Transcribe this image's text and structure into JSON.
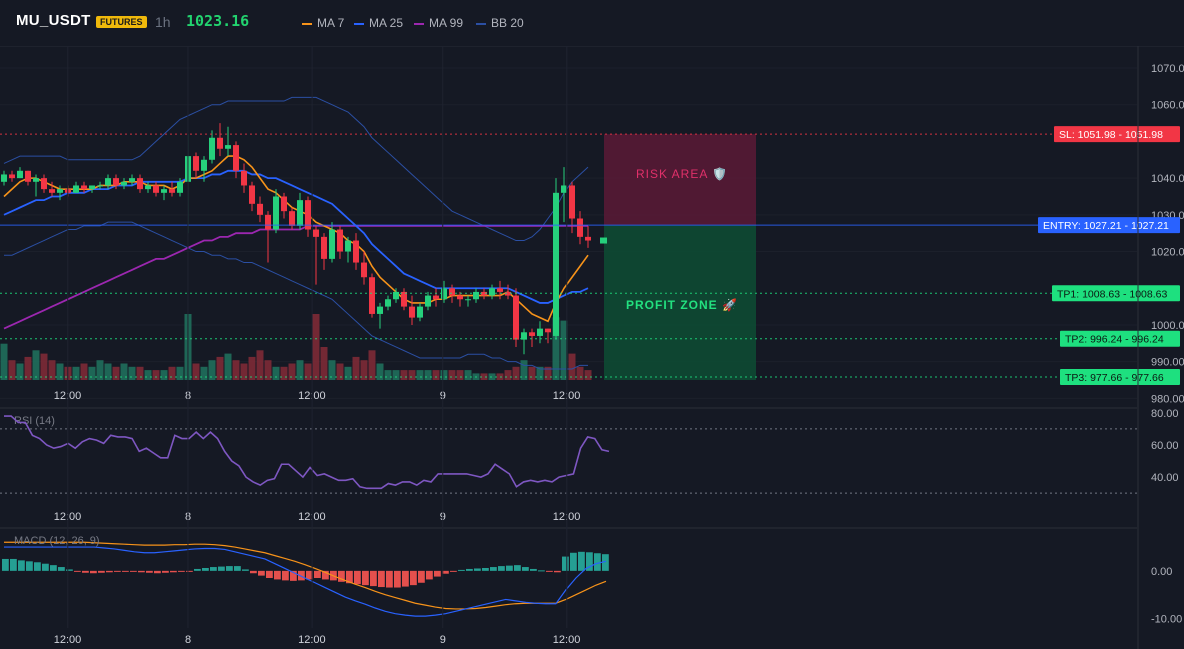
{
  "header": {
    "symbol": "MU_USDT",
    "badge": "FUTURES",
    "timeframe": "1h",
    "price": "1023.16",
    "legend": [
      {
        "label": "MA 7",
        "color": "#f7931a"
      },
      {
        "label": "MA 25",
        "color": "#2962ff"
      },
      {
        "label": "MA 99",
        "color": "#9c27b0"
      },
      {
        "label": "BB 20",
        "color": "#2b4fa3"
      }
    ]
  },
  "chart_data": [
    {
      "type": "candlestick",
      "ylim": [
        985,
        1076
      ],
      "yticks": [
        "1070.00",
        "1060.00",
        "1040.00",
        "1030.00",
        "1020.00",
        "1000.00",
        "990.00",
        "980.00"
      ],
      "xticks": [
        {
          "i": 5,
          "label": "12:00"
        },
        {
          "i": 23,
          "label": "8"
        },
        {
          "i": 38,
          "label": "12:00"
        },
        {
          "i": 53,
          "label": "9"
        },
        {
          "i": 68,
          "label": "12:00"
        }
      ],
      "colors": {
        "up": "#26d07c",
        "down": "#f23645"
      },
      "candles": [
        [
          1039,
          1042,
          1038,
          1041
        ],
        [
          1041,
          1042,
          1039,
          1040
        ],
        [
          1040,
          1043,
          1040,
          1042
        ],
        [
          1042,
          1042,
          1038,
          1039
        ],
        [
          1039,
          1041,
          1035,
          1040
        ],
        [
          1040,
          1041,
          1036,
          1037
        ],
        [
          1037,
          1039,
          1035,
          1036
        ],
        [
          1036,
          1038,
          1034,
          1037
        ],
        [
          1037,
          1038,
          1035,
          1036
        ],
        [
          1036,
          1039,
          1036,
          1038
        ],
        [
          1038,
          1039,
          1036,
          1037
        ],
        [
          1037,
          1038,
          1036,
          1038
        ],
        [
          1038,
          1039,
          1037,
          1038
        ],
        [
          1038,
          1041,
          1037,
          1040
        ],
        [
          1040,
          1041,
          1037,
          1038
        ],
        [
          1038,
          1040,
          1037,
          1039
        ],
        [
          1039,
          1041,
          1038,
          1040
        ],
        [
          1040,
          1041,
          1036,
          1037
        ],
        [
          1037,
          1039,
          1036,
          1038
        ],
        [
          1038,
          1039,
          1035,
          1036
        ],
        [
          1036,
          1038,
          1034,
          1037
        ],
        [
          1037,
          1039,
          1035,
          1036
        ],
        [
          1036,
          1040,
          1035,
          1039
        ],
        [
          1039,
          1052,
          1025,
          1046
        ],
        [
          1046,
          1047,
          1040,
          1042
        ],
        [
          1042,
          1046,
          1039,
          1045
        ],
        [
          1045,
          1053,
          1044,
          1051
        ],
        [
          1051,
          1055,
          1046,
          1048
        ],
        [
          1048,
          1054,
          1046,
          1049
        ],
        [
          1049,
          1050,
          1040,
          1042
        ],
        [
          1042,
          1044,
          1036,
          1038
        ],
        [
          1038,
          1039,
          1031,
          1033
        ],
        [
          1033,
          1035,
          1028,
          1030
        ],
        [
          1030,
          1031,
          1017,
          1026
        ],
        [
          1026,
          1037,
          1025,
          1035
        ],
        [
          1035,
          1036,
          1029,
          1031
        ],
        [
          1031,
          1032,
          1026,
          1027
        ],
        [
          1027,
          1036,
          1026,
          1034
        ],
        [
          1034,
          1035,
          1024,
          1026
        ],
        [
          1026,
          1027,
          1011,
          1024
        ],
        [
          1024,
          1025,
          1015,
          1018
        ],
        [
          1018,
          1028,
          1017,
          1026
        ],
        [
          1026,
          1027,
          1018,
          1020
        ],
        [
          1020,
          1024,
          1017,
          1023
        ],
        [
          1023,
          1025,
          1015,
          1017
        ],
        [
          1017,
          1020,
          1011,
          1013
        ],
        [
          1013,
          1014,
          1002,
          1003
        ],
        [
          1003,
          1006,
          999,
          1005
        ],
        [
          1005,
          1008,
          1004,
          1007
        ],
        [
          1007,
          1010,
          1006,
          1009
        ],
        [
          1009,
          1010,
          1004,
          1005
        ],
        [
          1005,
          1008,
          1000,
          1002
        ],
        [
          1002,
          1006,
          1001,
          1005
        ],
        [
          1005,
          1009,
          1004,
          1008
        ],
        [
          1008,
          1010,
          1005,
          1007
        ],
        [
          1007,
          1012,
          1006,
          1010
        ],
        [
          1010,
          1011,
          1006,
          1008
        ],
        [
          1008,
          1009,
          1005,
          1007
        ],
        [
          1007,
          1008,
          1005,
          1007
        ],
        [
          1007,
          1010,
          1006,
          1009
        ],
        [
          1009,
          1010,
          1007,
          1008
        ],
        [
          1008,
          1011,
          1007,
          1010
        ],
        [
          1010,
          1012,
          1007,
          1009
        ],
        [
          1009,
          1011,
          1007,
          1008
        ],
        [
          1008,
          1010,
          994,
          996
        ],
        [
          996,
          999,
          992,
          998
        ],
        [
          998,
          999,
          994,
          997
        ],
        [
          997,
          1001,
          995,
          999
        ],
        [
          999,
          999,
          995,
          998
        ],
        [
          997,
          1040,
          996,
          1036
        ],
        [
          1036,
          1043,
          1028,
          1038
        ],
        [
          1038,
          1039,
          1025,
          1029
        ],
        [
          1029,
          1031,
          1022,
          1024
        ],
        [
          1024,
          1027,
          1021,
          1023
        ]
      ],
      "ma7": [
        1035,
        1037,
        1039,
        1040,
        1040,
        1039,
        1038,
        1037,
        1037,
        1037,
        1037,
        1037,
        1038,
        1038,
        1038,
        1039,
        1039,
        1039,
        1038,
        1038,
        1038,
        1037,
        1038,
        1040,
        1040,
        1041,
        1042,
        1044,
        1046,
        1046,
        1045,
        1043,
        1040,
        1037,
        1036,
        1034,
        1032,
        1031,
        1030,
        1028,
        1027,
        1026,
        1025,
        1023,
        1022,
        1020,
        1016,
        1013,
        1011,
        1009,
        1007,
        1006,
        1006,
        1006,
        1007,
        1007,
        1008,
        1008,
        1008,
        1008,
        1008,
        1008,
        1008,
        1009,
        1007,
        1005,
        1003,
        1002,
        1001,
        1006,
        1010,
        1013,
        1016,
        1019
      ],
      "ma25": [
        1030,
        1031,
        1032,
        1033,
        1034,
        1034,
        1035,
        1035,
        1036,
        1036,
        1036,
        1037,
        1037,
        1037,
        1038,
        1038,
        1038,
        1039,
        1039,
        1039,
        1039,
        1039,
        1039,
        1040,
        1040,
        1040,
        1041,
        1041,
        1042,
        1042,
        1042,
        1041,
        1041,
        1040,
        1040,
        1039,
        1038,
        1037,
        1036,
        1035,
        1034,
        1033,
        1031,
        1029,
        1027,
        1025,
        1022,
        1020,
        1018,
        1016,
        1014,
        1013,
        1012,
        1011,
        1010,
        1010,
        1010,
        1010,
        1010,
        1010,
        1010,
        1010,
        1010,
        1010,
        1009,
        1008,
        1007,
        1006,
        1006,
        1007,
        1008,
        1009,
        1009,
        1010
      ],
      "ma99": [
        999,
        1000,
        1001,
        1002,
        1003,
        1004,
        1005,
        1006,
        1007,
        1008,
        1009,
        1010,
        1011,
        1012,
        1013,
        1014,
        1015,
        1016,
        1017,
        1018,
        1018,
        1019,
        1020,
        1021,
        1022,
        1023,
        1023,
        1024,
        1024,
        1025,
        1025,
        1025,
        1026,
        1026,
        1026,
        1026,
        1026,
        1026,
        1027,
        1027,
        1027,
        1027,
        1027,
        1027,
        1027,
        1027,
        1027,
        1027,
        1027,
        1027,
        1027,
        1027,
        1027,
        1027,
        1027,
        1027,
        1027,
        1027,
        1027,
        1027,
        1027,
        1027,
        1027,
        1027,
        1027,
        1027,
        1027,
        1027,
        1027,
        1027,
        1027,
        1027,
        1027,
        1027
      ],
      "bb_upper": [
        1044,
        1045,
        1046,
        1046,
        1046,
        1046,
        1046,
        1046,
        1045,
        1045,
        1045,
        1045,
        1045,
        1045,
        1045,
        1045,
        1045,
        1046,
        1048,
        1050,
        1052,
        1054,
        1056,
        1057,
        1058,
        1059,
        1060,
        1060,
        1061,
        1061,
        1061,
        1061,
        1061,
        1061,
        1061,
        1061,
        1062,
        1062,
        1062,
        1062,
        1061,
        1060,
        1059,
        1058,
        1056,
        1054,
        1051,
        1049,
        1047,
        1045,
        1043,
        1041,
        1039,
        1037,
        1035,
        1033,
        1031,
        1030,
        1029,
        1028,
        1027,
        1026,
        1025,
        1024,
        1023,
        1023,
        1024,
        1026,
        1029,
        1032,
        1036,
        1039,
        1041,
        1043
      ],
      "bb_lower": [
        1019,
        1019,
        1020,
        1021,
        1022,
        1023,
        1024,
        1025,
        1026,
        1026,
        1027,
        1027,
        1027,
        1028,
        1028,
        1028,
        1028,
        1027,
        1026,
        1025,
        1024,
        1023,
        1022,
        1021,
        1020,
        1020,
        1019,
        1019,
        1018,
        1018,
        1017,
        1017,
        1016,
        1015,
        1014,
        1013,
        1012,
        1011,
        1010,
        1009,
        1008,
        1007,
        1005,
        1003,
        1001,
        999,
        997,
        996,
        995,
        994,
        993,
        992,
        991,
        991,
        991,
        991,
        991,
        991,
        992,
        992,
        992,
        991,
        991,
        990,
        990,
        989,
        989,
        988,
        988,
        988,
        988,
        988,
        989,
        989
      ],
      "volume": [
        0.55,
        0.3,
        0.25,
        0.35,
        0.45,
        0.4,
        0.3,
        0.25,
        0.2,
        0.2,
        0.25,
        0.2,
        0.3,
        0.25,
        0.2,
        0.25,
        0.2,
        0.2,
        0.15,
        0.15,
        0.15,
        0.2,
        0.2,
        1.0,
        0.25,
        0.2,
        0.3,
        0.35,
        0.4,
        0.3,
        0.25,
        0.35,
        0.45,
        0.3,
        0.2,
        0.2,
        0.25,
        0.3,
        0.25,
        1.0,
        0.5,
        0.3,
        0.25,
        0.2,
        0.35,
        0.3,
        0.45,
        0.25,
        0.15,
        0.15,
        0.15,
        0.15,
        0.15,
        0.15,
        0.15,
        0.15,
        0.15,
        0.15,
        0.15,
        0.1,
        0.1,
        0.1,
        0.1,
        0.15,
        0.2,
        0.3,
        0.2,
        0.2,
        0.2,
        0.95,
        0.9,
        0.4,
        0.2,
        0.15
      ],
      "levels": [
        {
          "name": "sl",
          "label": "SL: 1051.98 - 1051.98",
          "value": 1051.98,
          "color": "#f23645"
        },
        {
          "name": "entry",
          "label": "ENTRY: 1027.21 - 1027.21",
          "value": 1027.21,
          "color": "#2962ff"
        },
        {
          "name": "tp1",
          "label": "TP1: 1008.63 - 1008.63",
          "value": 1008.63,
          "color": "#1ee07f"
        },
        {
          "name": "tp2",
          "label": "TP2: 996.24 - 996.24",
          "value": 996.24,
          "color": "#1ee07f"
        },
        {
          "name": "tp3",
          "label": "TP3: 977.66 - 977.66",
          "value": 977.66,
          "color": "#1ee07f"
        }
      ],
      "zones": {
        "risk_label": "RISK AREA 🛡️",
        "profit_label": "PROFIT ZONE 🚀"
      }
    },
    {
      "type": "line",
      "title": "RSI (14)",
      "ylim": [
        27,
        83
      ],
      "yticks": [
        "80.00",
        "60.00",
        "40.00"
      ],
      "bands": [
        70,
        30
      ],
      "color": "#7e57c2",
      "values": [
        78,
        78,
        74,
        74,
        66,
        64,
        60,
        58,
        59,
        61,
        58,
        62,
        64,
        63,
        61,
        66,
        65,
        65,
        64,
        56,
        58,
        55,
        52,
        52,
        66,
        64,
        64,
        68,
        64,
        68,
        64,
        56,
        50,
        47,
        40,
        37,
        35,
        38,
        39,
        48,
        48,
        44,
        40,
        46,
        41,
        42,
        40,
        38,
        38,
        39,
        34,
        33,
        33,
        33,
        36,
        35,
        37,
        37,
        35,
        38,
        37,
        42,
        42,
        42,
        42,
        42,
        41,
        40,
        42,
        48,
        45,
        42,
        34,
        37,
        38,
        37,
        38,
        37,
        40,
        41,
        42,
        58,
        65,
        64,
        57,
        56
      ]
    },
    {
      "type": "bar",
      "title": "MACD (12, 26, 9)",
      "ylim": [
        -12,
        9
      ],
      "yticks": [
        "0.00",
        "-10.00"
      ],
      "up_color": "#26a69a",
      "down_color": "#ef5350",
      "histogram": [
        2.5,
        2.5,
        2.2,
        2.0,
        1.8,
        1.5,
        1.2,
        0.8,
        0.3,
        -0.2,
        -0.4,
        -0.5,
        -0.4,
        -0.3,
        -0.2,
        -0.2,
        -0.2,
        -0.3,
        -0.4,
        -0.5,
        -0.4,
        -0.3,
        -0.2,
        -0.1,
        0.4,
        0.6,
        0.8,
        0.9,
        1.0,
        1.0,
        0.3,
        -0.5,
        -1.0,
        -1.5,
        -1.8,
        -2.0,
        -2.1,
        -2.0,
        -1.8,
        -1.5,
        -1.8,
        -2.0,
        -2.3,
        -2.6,
        -2.8,
        -3.0,
        -3.2,
        -3.4,
        -3.5,
        -3.5,
        -3.3,
        -3.0,
        -2.5,
        -1.8,
        -1.2,
        -0.6,
        -0.2,
        0.2,
        0.4,
        0.5,
        0.6,
        0.8,
        1.0,
        1.1,
        1.2,
        0.8,
        0.4,
        0.1,
        -0.1,
        -0.3,
        3.0,
        3.8,
        4.0,
        3.9,
        3.7,
        3.5
      ],
      "macd": [
        5,
        5,
        5,
        5,
        5,
        5,
        5,
        5,
        5,
        5,
        4.8,
        4.6,
        4.3,
        4.0,
        3.8,
        3.8,
        4.0,
        4.2,
        4.4,
        4.6,
        4.7,
        4.7,
        4.5,
        4.0,
        3.5,
        3.0,
        2.5,
        1.5,
        0.5,
        -0.5,
        -1.5,
        -2.5,
        -3.5,
        -4.5,
        -5.5,
        -6.3,
        -7.0,
        -7.8,
        -8.5,
        -9.0,
        -9.3,
        -9.5,
        -9.5,
        -9.3,
        -9.0,
        -8.5,
        -8.0,
        -7.5,
        -7.0,
        -6.5,
        -6.0,
        -6.3,
        -6.6,
        -6.8,
        -6.9,
        -6.9,
        -4.0,
        -1.5,
        0.5,
        1.5,
        2.0
      ],
      "signal": [
        6,
        6,
        6,
        6,
        6,
        6,
        6,
        6,
        6,
        5.9,
        5.8,
        5.7,
        5.6,
        5.5,
        5.4,
        5.4,
        5.4,
        5.5,
        5.5,
        5.6,
        5.6,
        5.5,
        5.3,
        5.0,
        4.6,
        4.2,
        3.8,
        3.2,
        2.6,
        2.0,
        1.3,
        0.5,
        -0.3,
        -1.2,
        -2.0,
        -2.8,
        -3.5,
        -4.3,
        -5.0,
        -5.6,
        -6.2,
        -6.8,
        -7.2,
        -7.6,
        -7.9,
        -8.0,
        -8.0,
        -7.9,
        -7.7,
        -7.4,
        -7.1,
        -6.9,
        -6.8,
        -6.8,
        -6.8,
        -6.8,
        -6.0,
        -5.0,
        -4.0,
        -3.0,
        -2.2
      ],
      "macd_color": "#2962ff",
      "signal_color": "#f7931a"
    }
  ],
  "time_axis": [
    {
      "pos": 0.0596,
      "label": "12:00"
    },
    {
      "pos": 0.1653,
      "label": "8"
    },
    {
      "pos": 0.2745,
      "label": "12:00"
    },
    {
      "pos": 0.3894,
      "label": "9"
    },
    {
      "pos": 0.4985,
      "label": "12:00"
    }
  ]
}
